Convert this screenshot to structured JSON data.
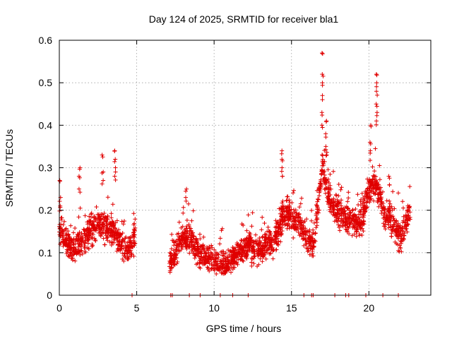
{
  "chart_data": {
    "type": "scatter",
    "title": "Day 124 of 2025, SRMTID for receiver bla1",
    "xlabel": "GPS time / hours",
    "ylabel": "SRMTID / TECUs",
    "xlim": [
      0,
      24
    ],
    "ylim": [
      0,
      0.6
    ],
    "xticks": [
      0,
      5,
      10,
      15,
      20
    ],
    "yticks": [
      0,
      0.1,
      0.2,
      0.3,
      0.4,
      0.5,
      0.6
    ],
    "xtick_labels": [
      "0",
      "5",
      "10",
      "15",
      "20"
    ],
    "ytick_labels": [
      "0",
      "0.1",
      "0.2",
      "0.3",
      "0.4",
      "0.5",
      "0.6"
    ],
    "grid": true,
    "marker": "+",
    "color": "#e00000",
    "segments": [
      {
        "start": 0.0,
        "end": 4.9,
        "profile": [
          [
            0.0,
            0.16
          ],
          [
            0.5,
            0.12
          ],
          [
            1.0,
            0.11
          ],
          [
            1.5,
            0.13
          ],
          [
            2.0,
            0.15
          ],
          [
            2.5,
            0.17
          ],
          [
            3.0,
            0.16
          ],
          [
            3.5,
            0.15
          ],
          [
            4.0,
            0.12
          ],
          [
            4.5,
            0.1
          ],
          [
            4.9,
            0.14
          ]
        ],
        "spread": 0.05
      },
      {
        "start": 7.1,
        "end": 12.4,
        "profile": [
          [
            7.1,
            0.07
          ],
          [
            7.5,
            0.1
          ],
          [
            8.0,
            0.14
          ],
          [
            8.5,
            0.13
          ],
          [
            9.0,
            0.1
          ],
          [
            9.5,
            0.09
          ],
          [
            10.0,
            0.08
          ],
          [
            10.5,
            0.07
          ],
          [
            11.0,
            0.08
          ],
          [
            11.5,
            0.1
          ],
          [
            12.0,
            0.11
          ],
          [
            12.4,
            0.12
          ]
        ],
        "spread": 0.045
      },
      {
        "start": 12.4,
        "end": 16.5,
        "profile": [
          [
            12.4,
            0.1
          ],
          [
            13.0,
            0.11
          ],
          [
            13.5,
            0.12
          ],
          [
            14.0,
            0.14
          ],
          [
            14.5,
            0.19
          ],
          [
            15.0,
            0.18
          ],
          [
            15.5,
            0.17
          ],
          [
            16.0,
            0.13
          ],
          [
            16.5,
            0.12
          ]
        ],
        "spread": 0.05
      },
      {
        "start": 16.5,
        "end": 19.6,
        "profile": [
          [
            16.5,
            0.14
          ],
          [
            17.0,
            0.3
          ],
          [
            17.5,
            0.22
          ],
          [
            18.0,
            0.2
          ],
          [
            18.5,
            0.18
          ],
          [
            19.0,
            0.17
          ],
          [
            19.6,
            0.18
          ]
        ],
        "spread": 0.05
      },
      {
        "start": 19.6,
        "end": 22.7,
        "profile": [
          [
            19.6,
            0.18
          ],
          [
            20.0,
            0.25
          ],
          [
            20.5,
            0.26
          ],
          [
            21.0,
            0.19
          ],
          [
            21.5,
            0.18
          ],
          [
            22.0,
            0.13
          ],
          [
            22.5,
            0.18
          ],
          [
            22.7,
            0.2
          ]
        ],
        "spread": 0.05
      }
    ],
    "spikes": [
      {
        "x": 0.05,
        "values": [
          0.27,
          0.23,
          0.21
        ]
      },
      {
        "x": 1.3,
        "values": [
          0.3,
          0.28,
          0.25
        ]
      },
      {
        "x": 2.8,
        "values": [
          0.33,
          0.29,
          0.27
        ]
      },
      {
        "x": 3.6,
        "values": [
          0.34,
          0.32,
          0.3,
          0.28
        ]
      },
      {
        "x": 8.2,
        "values": [
          0.25,
          0.23
        ]
      },
      {
        "x": 14.4,
        "values": [
          0.34,
          0.32,
          0.3,
          0.28
        ]
      },
      {
        "x": 17.0,
        "values": [
          0.57,
          0.52,
          0.5,
          0.47,
          0.43,
          0.4
        ]
      },
      {
        "x": 17.25,
        "values": [
          0.41,
          0.38,
          0.35,
          0.33
        ]
      },
      {
        "x": 20.1,
        "values": [
          0.4,
          0.36,
          0.34
        ]
      },
      {
        "x": 20.5,
        "values": [
          0.52,
          0.5,
          0.48,
          0.45,
          0.43,
          0.41
        ]
      },
      {
        "x": 21.3,
        "values": [
          0.28,
          0.26
        ]
      }
    ],
    "zero_points": [
      4.7,
      7.2,
      7.3,
      8.4,
      9.1,
      10.4,
      11.2,
      12.2,
      15.8,
      16.3,
      16.4,
      17.8,
      18.5,
      18.7,
      19.8,
      20.9,
      21.9
    ]
  }
}
